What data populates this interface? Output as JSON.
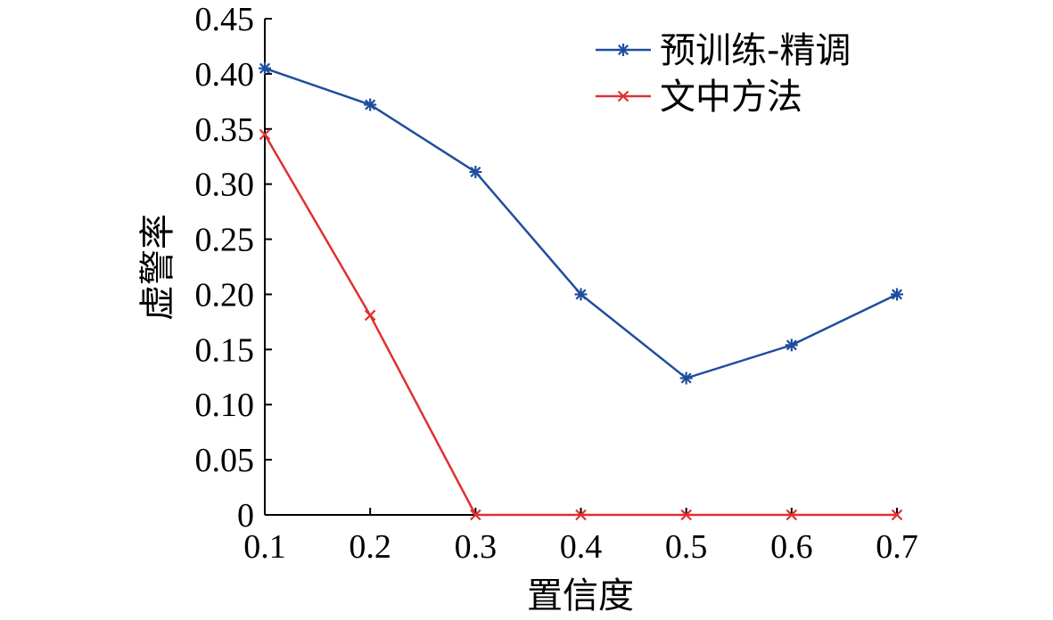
{
  "chart_data": {
    "type": "line",
    "title": "",
    "xlabel": "置信度",
    "ylabel": "虚警率",
    "x": [
      0.1,
      0.2,
      0.3,
      0.4,
      0.5,
      0.6,
      0.7
    ],
    "x_tick_labels": [
      "0.1",
      "0.2",
      "0.3",
      "0.4",
      "0.5",
      "0.6",
      "0.7"
    ],
    "y_ticks": [
      0,
      0.05,
      0.1,
      0.15,
      0.2,
      0.25,
      0.3,
      0.35,
      0.4,
      0.45
    ],
    "y_tick_labels": [
      "0",
      "0.05",
      "0.10",
      "0.15",
      "0.20",
      "0.25",
      "0.30",
      "0.35",
      "0.40",
      "0.45"
    ],
    "xlim": [
      0.1,
      0.7
    ],
    "ylim": [
      0,
      0.45
    ],
    "grid": false,
    "legend_position": "top-right",
    "series": [
      {
        "name": "预训练-精调",
        "color": "#1f4e9c",
        "marker": "asterisk",
        "values": [
          0.405,
          0.372,
          0.311,
          0.2,
          0.124,
          0.154,
          0.2
        ]
      },
      {
        "name": "文中方法",
        "color": "#e03030",
        "marker": "x",
        "values": [
          0.345,
          0.181,
          0.0,
          0.0,
          0.0,
          0.0,
          0.0
        ]
      }
    ]
  }
}
